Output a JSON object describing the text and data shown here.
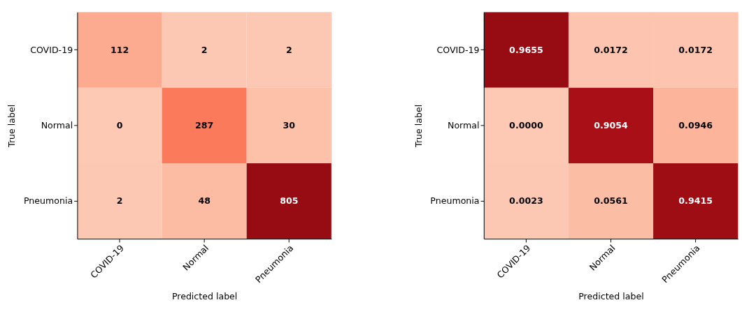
{
  "chart_data": [
    {
      "type": "heatmap",
      "xlabel": "Predicted label",
      "ylabel": "True label",
      "categories": [
        "COVID-19",
        "Normal",
        "Pneumonia"
      ],
      "y_categories": [
        "COVID-19",
        "Normal",
        "Pneumonia"
      ],
      "cells": [
        [
          112,
          2,
          2
        ],
        [
          0,
          287,
          30
        ],
        [
          2,
          48,
          805
        ]
      ],
      "data_labels": true
    },
    {
      "type": "heatmap",
      "xlabel": "Predicted label",
      "ylabel": "True label",
      "categories": [
        "COVID-19",
        "Normal",
        "Pneumonia"
      ],
      "y_categories": [
        "COVID-19",
        "Normal",
        "Pneumonia"
      ],
      "cells": [
        [
          0.9655,
          0.0172,
          0.0172
        ],
        [
          0.0,
          0.9054,
          0.0946
        ],
        [
          0.0023,
          0.0561,
          0.9415
        ]
      ],
      "cell_labels": [
        [
          "0.9655",
          "0.0172",
          "0.0172"
        ],
        [
          "0.0000",
          "0.9054",
          "0.0946"
        ],
        [
          "0.0023",
          "0.0561",
          "0.9415"
        ]
      ]
    }
  ]
}
